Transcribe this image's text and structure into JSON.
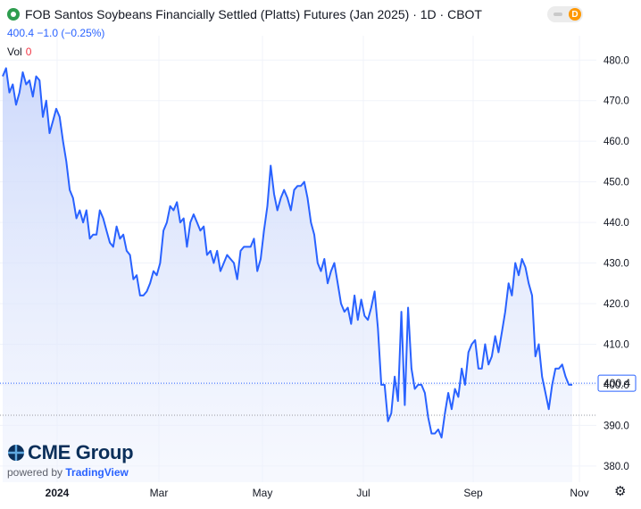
{
  "header": {
    "title": "FOB Santos Soybeans Financially Settled (Platts) Futures (Jan 2025) · 1D · CBOT",
    "price_change": "400.4 −1.0 (−0.25%)",
    "vol_label": "Vol",
    "vol_value": "0",
    "badge_letter": "D"
  },
  "brand": {
    "name": "CME Group",
    "powered_prefix": "powered by",
    "powered_name": "TradingView"
  },
  "icons": {
    "logo": "green-circle-icon",
    "settings": "gear-icon",
    "brand_mark": "cme-globe-icon"
  },
  "colors": {
    "line": "#2962ff",
    "fill": "#dbe4fb",
    "last_price_bg": "#ffffff",
    "up": "#2e9d4f",
    "down": "#f23645"
  },
  "chart_data": {
    "type": "area",
    "x_ticks": [
      "2024",
      "Mar",
      "May",
      "Jul",
      "Sep",
      "Nov"
    ],
    "y_ticks": [
      380,
      390,
      400,
      410,
      420,
      430,
      440,
      450,
      460,
      470,
      480
    ],
    "ylim": [
      376,
      486
    ],
    "last_price": 400.4,
    "last_price_label": "400.4",
    "reference_level": 392.5,
    "grid": true,
    "values": [
      476,
      478,
      472,
      474,
      469,
      472,
      477,
      474,
      475,
      471,
      476,
      475,
      466,
      470,
      462,
      465,
      468,
      466,
      460,
      455,
      448,
      446,
      441,
      443,
      440,
      443,
      436,
      437,
      437,
      443,
      441,
      438,
      435,
      434,
      439,
      436,
      437,
      433,
      432,
      426,
      427,
      422,
      422,
      423,
      425,
      428,
      427,
      430,
      438,
      440,
      444,
      443,
      445,
      440,
      441,
      434,
      440,
      442,
      440,
      438,
      439,
      432,
      433,
      430,
      433,
      428,
      430,
      432,
      431,
      430,
      426,
      433,
      434,
      434,
      434,
      436,
      428,
      431,
      438,
      444,
      454,
      447,
      443,
      446,
      448,
      446,
      443,
      448,
      449,
      449,
      450,
      446,
      440,
      437,
      430,
      428,
      431,
      425,
      428,
      430,
      425,
      420,
      418,
      419,
      415,
      422,
      416,
      421,
      417,
      416,
      419,
      423,
      414,
      400,
      400,
      391,
      393,
      402,
      396,
      418,
      395,
      419,
      404,
      399,
      400,
      400,
      398,
      392,
      388,
      388,
      389,
      387,
      393,
      398,
      394,
      399,
      397,
      404,
      400,
      408,
      410,
      411,
      404,
      404,
      410,
      405,
      407,
      412,
      408,
      413,
      418,
      425,
      422,
      430,
      427,
      431,
      429,
      425,
      422,
      407,
      410,
      402,
      398,
      394,
      400,
      404,
      404,
      405,
      402,
      400,
      400
    ]
  }
}
